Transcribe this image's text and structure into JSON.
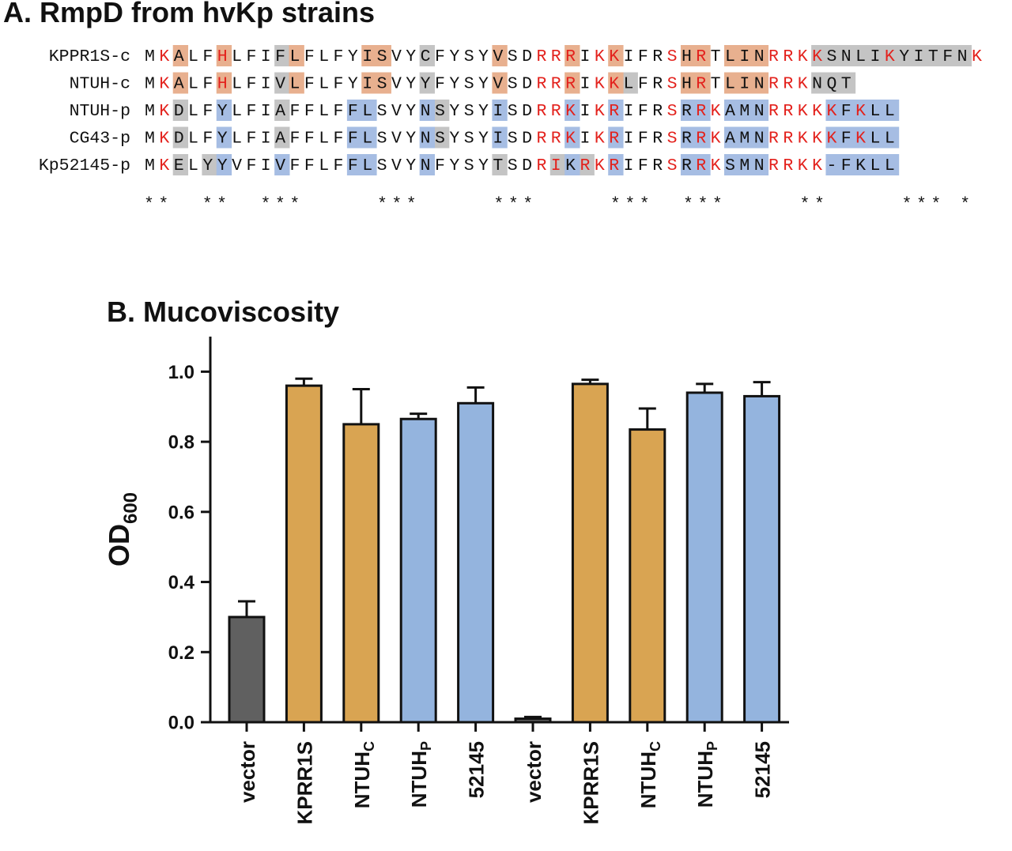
{
  "panel_a": {
    "title": "A. RmpD from hvKp strains",
    "colors": {
      "orange": "#e8b08f",
      "grey": "#c4c4c4",
      "blue": "#a6bde3",
      "red_text": "#e3211c"
    },
    "sequences": [
      {
        "name": "KPPR1S-c",
        "seq": "MKALFHLFIFLFLFYISVYCFYSYVSDRRRIKKIFRSHRTLINRRKKSNLIKYITFNK",
        "red": [
          1,
          5,
          27,
          28,
          29,
          31,
          32,
          36,
          38,
          43,
          44,
          45,
          46,
          51,
          57
        ],
        "hl": {
          "orange": [
            [
              2,
              2
            ],
            [
              5,
              5
            ],
            [
              10,
              10
            ],
            [
              15,
              16
            ],
            [
              24,
              24
            ],
            [
              29,
              29
            ],
            [
              32,
              32
            ],
            [
              37,
              38
            ],
            [
              40,
              42
            ]
          ],
          "grey": [
            [
              9,
              9
            ],
            [
              19,
              19
            ],
            [
              46,
              56
            ]
          ],
          "blue": []
        }
      },
      {
        "name": "NTUH-c",
        "seq": "MKALFHLFIVLFLFYISVYYFYSYVSDRRRIKKLFRSHRTLINRRKNQT",
        "red": [
          1,
          5,
          27,
          28,
          29,
          31,
          32,
          36,
          38,
          43,
          44,
          45
        ],
        "hl": {
          "orange": [
            [
              2,
              2
            ],
            [
              5,
              5
            ],
            [
              10,
              10
            ],
            [
              15,
              16
            ],
            [
              24,
              24
            ],
            [
              29,
              29
            ],
            [
              32,
              32
            ],
            [
              37,
              38
            ],
            [
              40,
              42
            ]
          ],
          "grey": [
            [
              9,
              9
            ],
            [
              19,
              19
            ],
            [
              33,
              33
            ],
            [
              46,
              48
            ]
          ],
          "blue": []
        }
      },
      {
        "name": "NTUH-p",
        "seq": "MKDLFYLFIAFFLFFLSVYNSYSYISDRRKIKRIFRSRRKAMNRRKKKFKLL",
        "red": [
          1,
          27,
          28,
          29,
          31,
          32,
          36,
          38,
          39,
          43,
          44,
          45,
          46,
          47,
          49
        ],
        "hl": {
          "orange": [],
          "grey": [
            [
              2,
              2
            ],
            [
              9,
              9
            ],
            [
              20,
              20
            ]
          ],
          "blue": [
            [
              5,
              5
            ],
            [
              14,
              15
            ],
            [
              19,
              19
            ],
            [
              24,
              24
            ],
            [
              29,
              29
            ],
            [
              32,
              32
            ],
            [
              37,
              38
            ],
            [
              40,
              42
            ],
            [
              47,
              51
            ]
          ]
        }
      },
      {
        "name": "CG43-p",
        "seq": "MKDLFYLFIAFFLFFLSVYNSYSYISDRRKIKRIFRSRRKAMNRRKKKFKLL",
        "red": [
          1,
          27,
          28,
          29,
          31,
          32,
          36,
          38,
          39,
          43,
          44,
          45,
          46,
          47,
          49
        ],
        "hl": {
          "orange": [],
          "grey": [
            [
              2,
              2
            ],
            [
              9,
              9
            ],
            [
              20,
              20
            ]
          ],
          "blue": [
            [
              5,
              5
            ],
            [
              14,
              15
            ],
            [
              19,
              19
            ],
            [
              24,
              24
            ],
            [
              29,
              29
            ],
            [
              32,
              32
            ],
            [
              37,
              38
            ],
            [
              40,
              42
            ],
            [
              47,
              51
            ]
          ]
        }
      },
      {
        "name": "Kp52145-p",
        "seq": "MKELYYVFIVFFLFFLSVYNFYSYTSDRIKRKRIFRSRRKSMNRRKK-FKLL",
        "red": [
          1,
          27,
          28,
          30,
          31,
          32,
          36,
          38,
          39,
          43,
          44,
          45,
          46
        ],
        "hl": {
          "orange": [],
          "grey": [
            [
              2,
              2
            ],
            [
              4,
              4
            ],
            [
              24,
              24
            ],
            [
              28,
              28
            ],
            [
              30,
              30
            ]
          ],
          "blue": [
            [
              5,
              5
            ],
            [
              9,
              9
            ],
            [
              14,
              15
            ],
            [
              19,
              19
            ],
            [
              29,
              29
            ],
            [
              32,
              32
            ],
            [
              37,
              38
            ],
            [
              40,
              42
            ],
            [
              47,
              51
            ]
          ]
        }
      }
    ],
    "conservation": "**  **  ***     ***     ***     ***  ***     **     *** *     ****"
  },
  "chart_data": {
    "type": "bar",
    "title": "B. Mucoviscosity",
    "ylabel": "OD",
    "ylabel_subscript": "600",
    "ylim": [
      0,
      1.1
    ],
    "yticks": [
      "0.0",
      "0.2",
      "0.4",
      "0.6",
      "0.8",
      "1.0"
    ],
    "categories": [
      {
        "label": "vector",
        "sub": ""
      },
      {
        "label": "KPRR1S",
        "sub": ""
      },
      {
        "label": "NTUH",
        "sub": "C"
      },
      {
        "label": "NTUH",
        "sub": "P"
      },
      {
        "label": "52145",
        "sub": ""
      },
      {
        "label": "vector",
        "sub": ""
      },
      {
        "label": "KPRR1S",
        "sub": ""
      },
      {
        "label": "NTUH",
        "sub": "C"
      },
      {
        "label": "NTUH",
        "sub": "P"
      },
      {
        "label": "52145",
        "sub": ""
      }
    ],
    "values": [
      0.3,
      0.96,
      0.85,
      0.865,
      0.91,
      0.01,
      0.965,
      0.835,
      0.94,
      0.93
    ],
    "errors": [
      0.045,
      0.02,
      0.1,
      0.015,
      0.045,
      0.005,
      0.012,
      0.06,
      0.025,
      0.04
    ],
    "colors": [
      "#606060",
      "#d9a452",
      "#d9a452",
      "#94b4de",
      "#94b4de",
      "#606060",
      "#d9a452",
      "#d9a452",
      "#94b4de",
      "#94b4de"
    ]
  }
}
